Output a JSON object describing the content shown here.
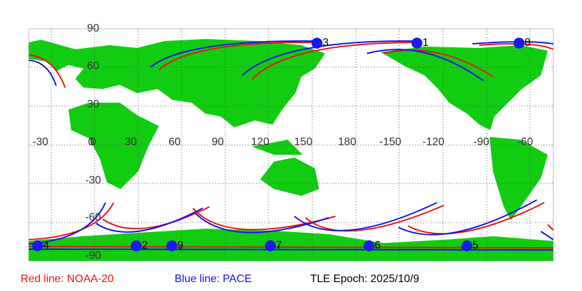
{
  "map": {
    "lat_labels": [
      "90",
      "60",
      "30",
      "0",
      "-30",
      "-60",
      "-90"
    ],
    "lon_labels": [
      "-30",
      "0",
      "30",
      "60",
      "90",
      "120",
      "150",
      "180",
      "-150",
      "-120",
      "-90",
      "-60"
    ],
    "markers": [
      "3",
      "1",
      "8",
      "4",
      "2",
      "9",
      "7",
      "6",
      "5"
    ]
  },
  "legend": {
    "red": "Red line: NOAA-20",
    "blue": "Blue line: PACE",
    "epoch": "TLE Epoch: 2025/10/9"
  }
}
